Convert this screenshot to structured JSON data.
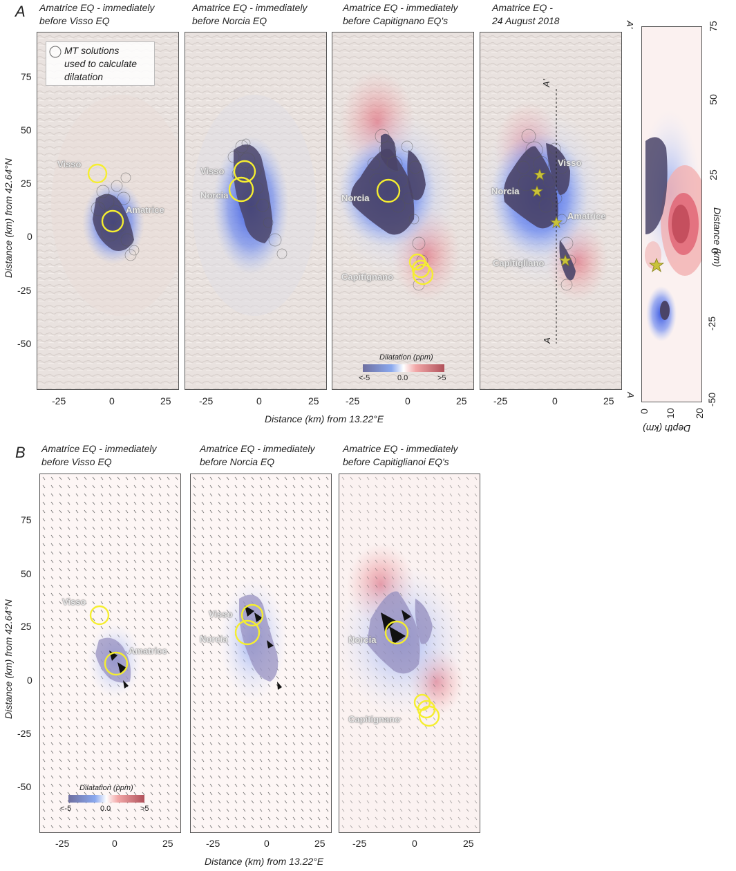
{
  "panel_labels": {
    "a": "A",
    "b": "B"
  },
  "titles_a": [
    [
      "Amatrice EQ - immediately",
      " before Visso EQ"
    ],
    [
      "Amatrice EQ - immediately",
      "before Norcia EQ"
    ],
    [
      "Amatrice EQ - immediately",
      "before Capitignano EQ's"
    ],
    [
      "Amatrice EQ -",
      "24 August 2018"
    ]
  ],
  "titles_b": [
    [
      "Amatrice EQ - immediately",
      " before Visso EQ"
    ],
    [
      "Amatrice EQ - immediately",
      "before Norcia EQ"
    ],
    [
      "Amatrice EQ - immediately",
      "before Capitiglianoi EQ's"
    ]
  ],
  "legend": {
    "lines": [
      "MT solutions",
      "used to calculate",
      "dilatation"
    ]
  },
  "axes": {
    "y_label": "Distance (km) from 42.64°N",
    "x_label": "Distance (km) from 13.22°E",
    "y_ticks": [
      "75",
      "50",
      "25",
      "0",
      "-25",
      "-50"
    ],
    "x_ticks": [
      "-25",
      "0",
      "25"
    ],
    "xsec_depth_label": "Depth (km)",
    "xsec_depth_ticks": [
      "0",
      "10",
      "20"
    ],
    "xsec_dist_label": "Distance (km)",
    "xsec_dist_ticks": [
      "75",
      "50",
      "25",
      "0",
      "-25",
      "-50"
    ],
    "xsec_end_top": "A'",
    "xsec_end_bottom": "A"
  },
  "colorbar": {
    "title": "Dilatation (ppm)",
    "min": "<-5",
    "mid": "0.0",
    "max": ">5"
  },
  "places": {
    "visso": "Visso",
    "amatrice": "Amatrice",
    "norcia": "Norcia",
    "capitignano": "Capitignano"
  },
  "places_p4": {
    "visso": "Visso",
    "norcia": "Norcia",
    "amatrice": "Amatrice",
    "capitigliano": "Capitigliano"
  },
  "profile": {
    "top": "A'",
    "bottom": "A"
  },
  "colors": {
    "blue": "#3355dd",
    "dark": "#4a4468",
    "red": "#cc3344",
    "yellow": "#f5ee30",
    "star": "#c9c23a"
  }
}
